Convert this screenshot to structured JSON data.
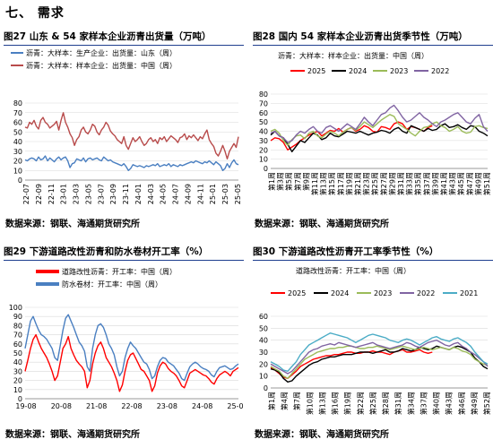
{
  "section": {
    "title": "七、 需求"
  },
  "charts": [
    {
      "title": "图27  山东 & 54 家样本企业沥青出货量（万吨）",
      "source": "数据来源：钢联、海通期货研究所",
      "chart_data": {
        "type": "line",
        "ylim": [
          0,
          80
        ],
        "yticks": [
          0,
          10,
          20,
          30,
          40,
          50,
          60,
          70,
          80
        ],
        "xticks": [
          "22-07",
          "22-09",
          "22-11",
          "23-01",
          "23-03",
          "23-05",
          "23-07",
          "23-09",
          "23-11",
          "24-01",
          "24-03",
          "24-05",
          "24-07",
          "24-09",
          "24-11",
          "25-01",
          "25-03",
          "25-05"
        ],
        "series": [
          {
            "name": "沥青：大样本：生产企业：出货量：山东（周）",
            "color": "#4a7fc1",
            "values": [
              21,
              20,
              22,
              23,
              22,
              20,
              24,
              21,
              22,
              25,
              20,
              23,
              21,
              19,
              22,
              24,
              21,
              23,
              24,
              20,
              13,
              17,
              18,
              22,
              21,
              20,
              23,
              19,
              22,
              23,
              21,
              22,
              23,
              21,
              20,
              24,
              22,
              20,
              21,
              19,
              18,
              17,
              16,
              15,
              17,
              14,
              10,
              12,
              16,
              15,
              14,
              15,
              14,
              13,
              15,
              14,
              15,
              16,
              15,
              17,
              14,
              15,
              16,
              15,
              17,
              14,
              16,
              15,
              14,
              16,
              15,
              16,
              17,
              18,
              19,
              18,
              20,
              19,
              18,
              17,
              19,
              18,
              20,
              18,
              16,
              19,
              17,
              15,
              10,
              12,
              17,
              13,
              18,
              21,
              17,
              16
            ]
          },
          {
            "name": "沥青：大样本：样本企业：出货量：中国（周）",
            "color": "#b84b4b",
            "values": [
              55,
              54,
              60,
              58,
              62,
              56,
              53,
              62,
              65,
              60,
              58,
              54,
              56,
              58,
              61,
              52,
              62,
              70,
              60,
              55,
              48,
              44,
              36,
              42,
              45,
              52,
              55,
              50,
              48,
              52,
              58,
              56,
              50,
              47,
              52,
              55,
              60,
              57,
              51,
              48,
              46,
              42,
              40,
              38,
              45,
              36,
              32,
              38,
              44,
              40,
              42,
              45,
              40,
              36,
              38,
              42,
              44,
              40,
              42,
              38,
              44,
              42,
              45,
              40,
              43,
              46,
              44,
              42,
              39,
              44,
              45,
              48,
              42,
              46,
              44,
              47,
              44,
              41,
              45,
              43,
              48,
              52,
              42,
              38,
              35,
              28,
              25,
              30,
              36,
              30,
              22,
              30,
              34,
              38,
              34,
              45
            ]
          }
        ]
      }
    },
    {
      "title": "图28  国内 54 家样本企业沥青出货季节性（万吨）",
      "subtitle": "沥青：大样本：样本企业：出货量：中国（周）",
      "source": "数据来源：钢联、海通期货研究所",
      "chart_data": {
        "type": "line",
        "ylim": [
          0,
          80
        ],
        "yticks": [
          0,
          10,
          20,
          30,
          40,
          50,
          60,
          70,
          80
        ],
        "xticks": [
          "第1周",
          "第3周",
          "第5周",
          "第7周",
          "第9周",
          "第11周",
          "第13周",
          "第15周",
          "第17周",
          "第19周",
          "第21周",
          "第23周",
          "第25周",
          "第27周",
          "第29周",
          "第31周",
          "第33周",
          "第35周",
          "第37周",
          "第39周",
          "第41周",
          "第43周",
          "第45周",
          "第47周",
          "第49周",
          "第51周"
        ],
        "series": [
          {
            "name": "2025",
            "color": "#ff0000",
            "values": [
              30,
              33,
              32,
              28,
              20,
              23,
              26,
              30,
              33,
              36,
              38,
              40,
              35,
              38,
              41,
              40,
              43,
              39,
              42,
              44,
              40,
              42,
              46,
              44,
              40,
              39,
              45,
              44,
              42,
              48,
              50,
              48,
              42,
              45,
              44,
              42,
              40,
              44,
              46
            ]
          },
          {
            "name": "2024",
            "color": "#000000",
            "values": [
              36,
              40,
              35,
              33,
              26,
              18,
              24,
              30,
              28,
              33,
              38,
              36,
              31,
              33,
              38,
              35,
              34,
              37,
              40,
              39,
              38,
              40,
              38,
              36,
              38,
              39,
              41,
              40,
              38,
              42,
              44,
              40,
              38,
              46,
              44,
              42,
              40,
              43,
              41,
              42,
              46,
              48,
              44,
              45,
              47,
              44,
              42,
              46,
              45,
              40,
              38,
              35
            ]
          },
          {
            "name": "2023",
            "color": "#9bbb59",
            "values": [
              40,
              42,
              38,
              30,
              25,
              31,
              35,
              36,
              32,
              38,
              40,
              35,
              33,
              37,
              40,
              38,
              35,
              39,
              42,
              44,
              41,
              45,
              50,
              47,
              44,
              48,
              52,
              55,
              58,
              56,
              48,
              45,
              42,
              38,
              35,
              40,
              44,
              45,
              48,
              50,
              46,
              44,
              40,
              42,
              45,
              40,
              38,
              39,
              45,
              46,
              44,
              43
            ]
          },
          {
            "name": "2022",
            "color": "#8064a2",
            "values": [
              38,
              40,
              35,
              33,
              28,
              30,
              36,
              40,
              38,
              42,
              45,
              40,
              38,
              44,
              46,
              43,
              40,
              44,
              48,
              45,
              42,
              48,
              55,
              50,
              46,
              52,
              58,
              60,
              65,
              68,
              62,
              55,
              50,
              52,
              56,
              60,
              55,
              52,
              48,
              45,
              50,
              52,
              55,
              58,
              60,
              55,
              50,
              48,
              54,
              58,
              45,
              40
            ]
          }
        ]
      }
    },
    {
      "title": "图29  下游道路改性沥青和防水卷材开工率（%）",
      "source": "数据来源：钢联、海通期货研究所",
      "chart_data": {
        "type": "line",
        "ylim": [
          0,
          100
        ],
        "yticks": [
          0,
          10,
          20,
          30,
          40,
          50,
          60,
          70,
          80,
          90,
          100
        ],
        "xticks": [
          "19-08",
          "20-08",
          "21-08",
          "22-08",
          "23-08",
          "24-08",
          "25-08"
        ],
        "series": [
          {
            "name": "道路改性沥青：开工率：中国（周）",
            "color": "#ff0000",
            "values": [
              30,
              42,
              55,
              65,
              70,
              62,
              55,
              50,
              45,
              38,
              30,
              20,
              25,
              40,
              55,
              60,
              68,
              55,
              48,
              42,
              38,
              35,
              30,
              12,
              20,
              38,
              50,
              58,
              62,
              55,
              45,
              40,
              35,
              28,
              20,
              8,
              15,
              30,
              42,
              48,
              50,
              44,
              38,
              32,
              30,
              25,
              20,
              8,
              14,
              28,
              36,
              40,
              38,
              33,
              30,
              28,
              25,
              20,
              14,
              12,
              20,
              28,
              30,
              32,
              30,
              28,
              26,
              25,
              22,
              18,
              16,
              22,
              26,
              28,
              30,
              28,
              25,
              30,
              32,
              34
            ]
          },
          {
            "name": "防水卷材：开工率：中国（周）",
            "color": "#4a7fc1",
            "values": [
              55,
              70,
              85,
              90,
              82,
              75,
              70,
              68,
              65,
              60,
              55,
              45,
              42,
              58,
              75,
              88,
              92,
              85,
              78,
              70,
              62,
              58,
              52,
              35,
              30,
              55,
              70,
              80,
              82,
              78,
              70,
              60,
              55,
              48,
              35,
              25,
              30,
              45,
              55,
              62,
              58,
              55,
              50,
              45,
              40,
              38,
              32,
              22,
              25,
              35,
              42,
              45,
              44,
              40,
              38,
              36,
              32,
              28,
              22,
              20,
              28,
              35,
              38,
              40,
              38,
              35,
              33,
              32,
              30,
              26,
              24,
              30,
              34,
              35,
              36,
              34,
              32,
              33,
              36,
              38
            ]
          }
        ]
      }
    },
    {
      "title": "图30  下游道路改性沥青开工率季节性（%）",
      "subtitle": "道路改性沥青：开工率：中国（周）",
      "source": "数据来源：钢联、海通期货研究所",
      "chart_data": {
        "type": "line",
        "ylim": [
          0,
          60
        ],
        "yticks": [
          0,
          10,
          20,
          30,
          40,
          50,
          60
        ],
        "xticks": [
          "第1周",
          "第4周",
          "第7周",
          "第10周",
          "第13周",
          "第16周",
          "第19周",
          "第22周",
          "第25周",
          "第28周",
          "第31周",
          "第34周",
          "第37周",
          "第40周",
          "第43周",
          "第46周",
          "第49周",
          "第52周"
        ],
        "series": [
          {
            "name": "2025",
            "color": "#ff0000",
            "values": [
              17,
              15,
              12,
              9,
              8,
              11,
              14,
              18,
              20,
              22,
              24,
              25,
              26,
              27,
              27,
              28,
              28,
              29,
              30,
              30,
              29,
              29,
              30,
              30,
              31,
              30,
              30,
              29,
              28,
              30,
              31,
              32,
              30,
              30,
              31,
              32,
              30,
              29,
              30
            ]
          },
          {
            "name": "2024",
            "color": "#000000",
            "values": [
              16,
              15,
              13,
              8,
              5,
              6,
              10,
              13,
              16,
              19,
              21,
              22,
              24,
              25,
              26,
              26,
              27,
              28,
              28,
              28,
              29,
              30,
              30,
              30,
              29,
              30,
              31,
              32,
              30,
              30,
              31,
              33,
              32,
              31,
              32,
              34,
              33,
              32,
              33,
              35,
              34,
              33,
              32,
              34,
              35,
              34,
              32,
              30,
              25,
              22,
              18,
              16
            ]
          },
          {
            "name": "2023",
            "color": "#9bbb59",
            "values": [
              18,
              16,
              14,
              10,
              8,
              12,
              16,
              20,
              24,
              26,
              28,
              30,
              31,
              32,
              33,
              33,
              34,
              34,
              35,
              35,
              34,
              33,
              33,
              34,
              34,
              35,
              34,
              33,
              32,
              33,
              34,
              35,
              34,
              33,
              32,
              33,
              34,
              33,
              32,
              33,
              34,
              33,
              32,
              34,
              33,
              31,
              30,
              28,
              24,
              22,
              20,
              19
            ]
          },
          {
            "name": "2022",
            "color": "#8064a2",
            "values": [
              20,
              18,
              16,
              14,
              12,
              14,
              18,
              22,
              26,
              30,
              32,
              33,
              35,
              36,
              37,
              36,
              38,
              37,
              36,
              35,
              34,
              35,
              36,
              37,
              38,
              36,
              35,
              34,
              33,
              34,
              35,
              36,
              38,
              37,
              35,
              34,
              36,
              38,
              39,
              40,
              38,
              36,
              35,
              37,
              38,
              35,
              33,
              30,
              28,
              25,
              22,
              18
            ]
          },
          {
            "name": "2021",
            "color": "#4bacc6",
            "values": [
              22,
              20,
              18,
              15,
              14,
              18,
              22,
              28,
              32,
              36,
              38,
              40,
              42,
              44,
              46,
              45,
              44,
              43,
              42,
              40,
              38,
              40,
              42,
              44,
              45,
              44,
              43,
              42,
              40,
              39,
              38,
              40,
              41,
              40,
              38,
              36,
              38,
              40,
              42,
              43,
              41,
              40,
              39,
              41,
              42,
              40,
              38,
              35,
              30,
              26,
              22,
              20
            ]
          }
        ]
      }
    }
  ]
}
